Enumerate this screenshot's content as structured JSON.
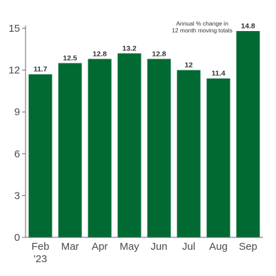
{
  "chart_data": {
    "type": "bar",
    "categories": [
      "Feb",
      "Mar",
      "Apr",
      "May",
      "Jun",
      "Jul",
      "Aug",
      "Sep"
    ],
    "year_label": "'23",
    "values": [
      11.7,
      12.5,
      12.8,
      13.2,
      12.8,
      12,
      11.4,
      14.8
    ],
    "data_labels": [
      "11.7",
      "12.5",
      "12.8",
      "13.2",
      "12.8",
      "12",
      "11.4",
      "14.8"
    ],
    "ylim": [
      0,
      15
    ],
    "yticks": [
      0,
      3,
      6,
      9,
      12,
      15
    ],
    "grid": false,
    "annotation": [
      "Annual % change in",
      "12 month moving totals"
    ],
    "colors": {
      "bar": "#006a32",
      "axis": "#666666",
      "text": "#4a4a4a"
    }
  }
}
